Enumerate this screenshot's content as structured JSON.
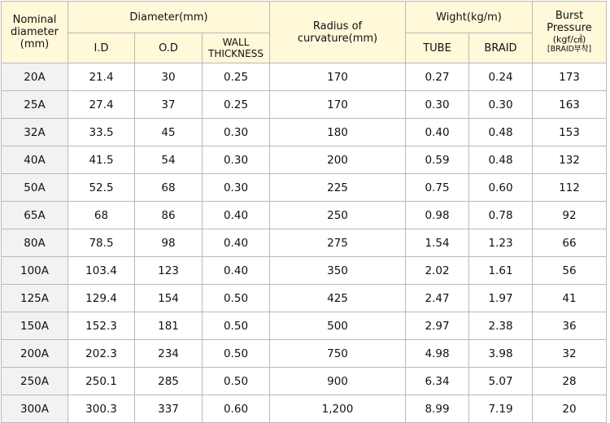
{
  "headers": {
    "nominal": [
      "Nominal",
      "diameter",
      "(mm)"
    ],
    "diameter_group": "Diameter(mm)",
    "id": "I.D",
    "od": "O.D",
    "wall": [
      "WALL",
      "THICKNESS"
    ],
    "radius": [
      "Radius  of",
      "curvature(mm)"
    ],
    "weight_group": "Wight(kg/m)",
    "tube": "TUBE",
    "braid": "BRAID",
    "burst": [
      "Burst",
      "Pressure",
      "(kgf/㎠)",
      "[BRAID부착]"
    ]
  },
  "rows": [
    {
      "nominal": "20A",
      "id": "21.4",
      "od": "30",
      "wall": "0.25",
      "radius": "170",
      "tube": "0.27",
      "braid": "0.24",
      "burst": "173"
    },
    {
      "nominal": "25A",
      "id": "27.4",
      "od": "37",
      "wall": "0.25",
      "radius": "170",
      "tube": "0.30",
      "braid": "0.30",
      "burst": "163"
    },
    {
      "nominal": "32A",
      "id": "33.5",
      "od": "45",
      "wall": "0.30",
      "radius": "180",
      "tube": "0.40",
      "braid": "0.48",
      "burst": "153"
    },
    {
      "nominal": "40A",
      "id": "41.5",
      "od": "54",
      "wall": "0.30",
      "radius": "200",
      "tube": "0.59",
      "braid": "0.48",
      "burst": "132"
    },
    {
      "nominal": "50A",
      "id": "52.5",
      "od": "68",
      "wall": "0.30",
      "radius": "225",
      "tube": "0.75",
      "braid": "0.60",
      "burst": "112"
    },
    {
      "nominal": "65A",
      "id": "68",
      "od": "86",
      "wall": "0.40",
      "radius": "250",
      "tube": "0.98",
      "braid": "0.78",
      "burst": "92"
    },
    {
      "nominal": "80A",
      "id": "78.5",
      "od": "98",
      "wall": "0.40",
      "radius": "275",
      "tube": "1.54",
      "braid": "1.23",
      "burst": "66"
    },
    {
      "nominal": "100A",
      "id": "103.4",
      "od": "123",
      "wall": "0.40",
      "radius": "350",
      "tube": "2.02",
      "braid": "1.61",
      "burst": "56"
    },
    {
      "nominal": "125A",
      "id": "129.4",
      "od": "154",
      "wall": "0.50",
      "radius": "425",
      "tube": "2.47",
      "braid": "1.97",
      "burst": "41"
    },
    {
      "nominal": "150A",
      "id": "152.3",
      "od": "181",
      "wall": "0.50",
      "radius": "500",
      "tube": "2.97",
      "braid": "2.38",
      "burst": "36"
    },
    {
      "nominal": "200A",
      "id": "202.3",
      "od": "234",
      "wall": "0.50",
      "radius": "750",
      "tube": "4.98",
      "braid": "3.98",
      "burst": "32"
    },
    {
      "nominal": "250A",
      "id": "250.1",
      "od": "285",
      "wall": "0.50",
      "radius": "900",
      "tube": "6.34",
      "braid": "5.07",
      "burst": "28"
    },
    {
      "nominal": "300A",
      "id": "300.3",
      "od": "337",
      "wall": "0.60",
      "radius": "1,200",
      "tube": "8.99",
      "braid": "7.19",
      "burst": "20"
    }
  ],
  "colors": {
    "header_bg": "#fff8d9",
    "first_col_bg": "#f2f2f2",
    "border": "#b9b9b9"
  }
}
